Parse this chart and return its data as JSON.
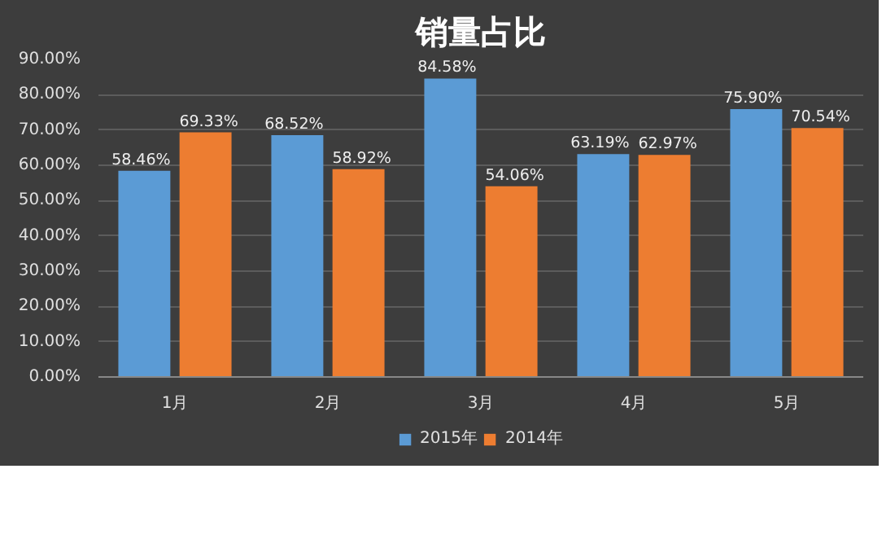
{
  "chart_data": {
    "type": "bar",
    "title": "销量占比",
    "categories": [
      "1月",
      "2月",
      "3月",
      "4月",
      "5月"
    ],
    "series": [
      {
        "name": "2015年",
        "color": "#5b9bd5",
        "values": [
          58.46,
          68.52,
          84.58,
          63.19,
          75.9
        ],
        "value_labels": [
          "58.46%",
          "68.52%",
          "84.58%",
          "63.19%",
          "75.90%"
        ]
      },
      {
        "name": "2014年",
        "color": "#ed7d31",
        "values": [
          69.33,
          58.92,
          54.06,
          62.97,
          70.54
        ],
        "value_labels": [
          "69.33%",
          "58.92%",
          "54.06%",
          "62.97%",
          "70.54%"
        ]
      }
    ],
    "ylim": [
      0,
      90
    ],
    "yticks": [
      {
        "value": 0,
        "label": "0.00%"
      },
      {
        "value": 10,
        "label": "10.00%"
      },
      {
        "value": 20,
        "label": "20.00%"
      },
      {
        "value": 30,
        "label": "30.00%"
      },
      {
        "value": 40,
        "label": "40.00%"
      },
      {
        "value": 50,
        "label": "50.00%"
      },
      {
        "value": 60,
        "label": "60.00%"
      },
      {
        "value": 70,
        "label": "70.00%"
      },
      {
        "value": 80,
        "label": "80.00%"
      },
      {
        "value": 90,
        "label": "90.00%"
      }
    ],
    "grid": "y",
    "legend": "bottom"
  }
}
